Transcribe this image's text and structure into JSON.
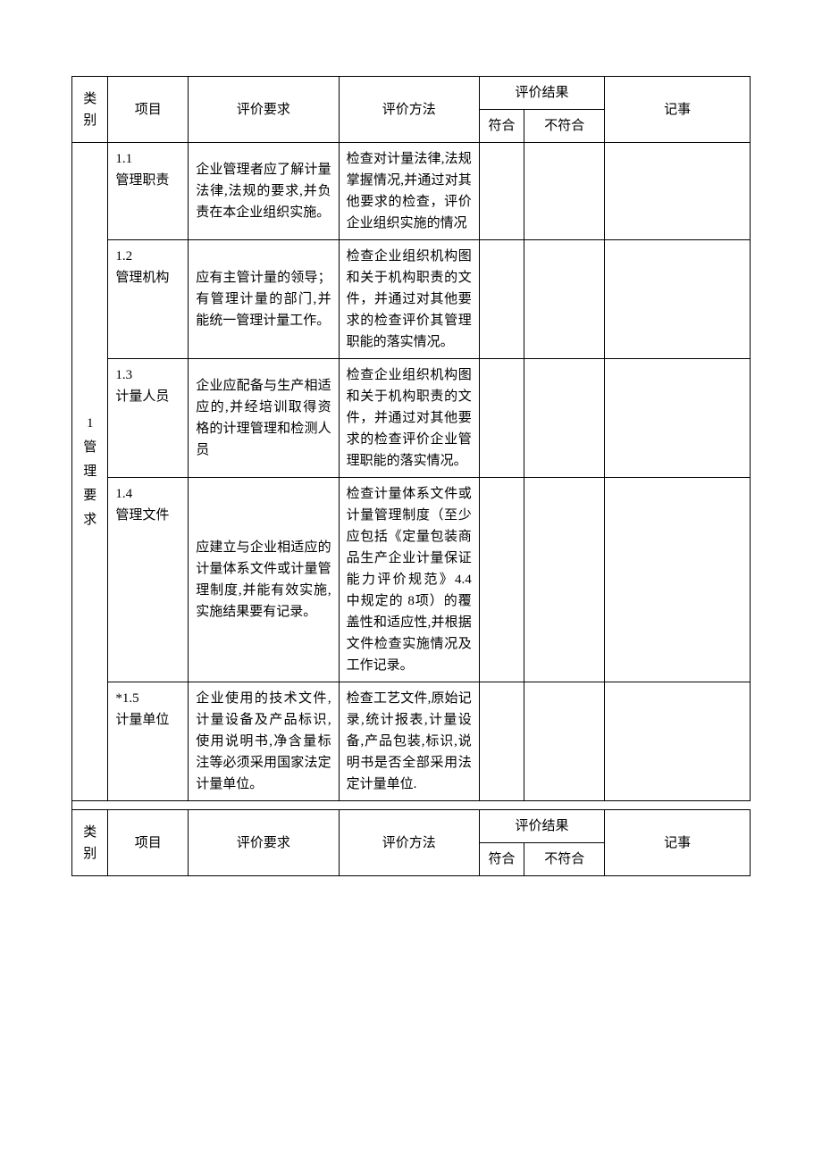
{
  "header": {
    "col_category": "类别",
    "col_item": "项目",
    "col_requirement": "评价要求",
    "col_method": "评价方法",
    "col_result": "评价结果",
    "col_result_fit": "符合",
    "col_result_nofit": "不符合",
    "col_notes": "记事"
  },
  "category1": {
    "label": "1 管理要求",
    "rows": [
      {
        "item": "1.1\n管理职责",
        "requirement": "企业管理者应了解计量法律,法规的要求,并负责在本企业组织实施。",
        "method": "检查对计量法律,法规掌握情况,并通过对其他要求的检查，评价企业组织实施的情况"
      },
      {
        "item": "1.2\n管理机构",
        "requirement": "应有主管计量的领导；有管理计量的部门,并能统一管理计量工作。",
        "method": "检查企业组织机构图和关于机构职责的文件，并通过对其他要求的检查评价其管理职能的落实情况。"
      },
      {
        "item": "1.3\n计量人员",
        "requirement": "企业应配备与生产相适应的,并经培训取得资格的计理管理和检测人员",
        "method": "检查企业组织机构图和关于机构职责的文件，并通过对其他要求的检查评价企业管理职能的落实情况。"
      },
      {
        "item": "1.4\n管理文件",
        "requirement": "应建立与企业相适应的计量体系文件或计量管理制度,并能有效实施,实施结果要有记录。",
        "method": "检查计量体系文件或计量管理制度（至少应包括《定量包装商品生产企业计量保证能力评价规范》4.4 中规定的 8项）的覆盖性和适应性,并根据文件检查实施情况及工作记录。"
      },
      {
        "item": "*1.5\n计量单位",
        "requirement": "企业使用的技术文件,计量设备及产品标识,使用说明书,净含量标注等必须采用国家法定计量单位。",
        "method": "检查工艺文件,原始记录,统计报表,计量设备,产品包装,标识,说明书是否全部采用法定计量单位."
      }
    ]
  }
}
